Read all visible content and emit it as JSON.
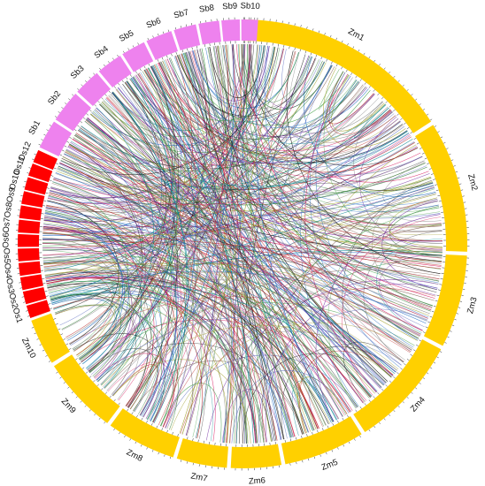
{
  "diagram": {
    "type": "circos-synteny",
    "colors": {
      "maize": "#FFD000",
      "sorghum": "#EE82EE",
      "rice": "#FF0000"
    },
    "segments": [
      {
        "id": "Zm1",
        "label": "Zm1",
        "group": "maize"
      },
      {
        "id": "Zm2",
        "label": "Zm2",
        "group": "maize"
      },
      {
        "id": "Zm3",
        "label": "Zm3",
        "group": "maize"
      },
      {
        "id": "Zm4",
        "label": "Zm4",
        "group": "maize"
      },
      {
        "id": "Zm5",
        "label": "Zm5",
        "group": "maize"
      },
      {
        "id": "Zm6",
        "label": "Zm6",
        "group": "maize"
      },
      {
        "id": "Zm7",
        "label": "Zm7",
        "group": "maize"
      },
      {
        "id": "Zm8",
        "label": "Zm8",
        "group": "maize"
      },
      {
        "id": "Zm9",
        "label": "Zm9",
        "group": "maize"
      },
      {
        "id": "Zm10",
        "label": "Zm10",
        "group": "maize"
      },
      {
        "id": "Os1",
        "label": "Os1",
        "group": "rice"
      },
      {
        "id": "Os2",
        "label": "Os2",
        "group": "rice"
      },
      {
        "id": "Os3",
        "label": "Os3",
        "group": "rice"
      },
      {
        "id": "Os4",
        "label": "Os4",
        "group": "rice"
      },
      {
        "id": "Os5",
        "label": "Os5",
        "group": "rice"
      },
      {
        "id": "Os6",
        "label": "Os6",
        "group": "rice"
      },
      {
        "id": "Os7",
        "label": "Os7",
        "group": "rice"
      },
      {
        "id": "Os8",
        "label": "Os8",
        "group": "rice"
      },
      {
        "id": "Os9",
        "label": "Os9",
        "group": "rice"
      },
      {
        "id": "Os10",
        "label": "Os10",
        "group": "rice"
      },
      {
        "id": "Os11",
        "label": "Os11",
        "group": "rice"
      },
      {
        "id": "Os12",
        "label": "Os12",
        "group": "rice"
      },
      {
        "id": "Sb1",
        "label": "Sb1",
        "group": "sorghum"
      },
      {
        "id": "Sb2",
        "label": "Sb2",
        "group": "sorghum"
      },
      {
        "id": "Sb3",
        "label": "Sb3",
        "group": "sorghum"
      },
      {
        "id": "Sb4",
        "label": "Sb4",
        "group": "sorghum"
      },
      {
        "id": "Sb5",
        "label": "Sb5",
        "group": "sorghum"
      },
      {
        "id": "Sb6",
        "label": "Sb6",
        "group": "sorghum"
      },
      {
        "id": "Sb7",
        "label": "Sb7",
        "group": "sorghum"
      },
      {
        "id": "Sb8",
        "label": "Sb8",
        "group": "sorghum"
      },
      {
        "id": "Sb9",
        "label": "Sb9",
        "group": "sorghum"
      },
      {
        "id": "Sb10",
        "label": "Sb10",
        "group": "sorghum"
      }
    ],
    "link_colors": [
      "#1a1a1a",
      "#2e7d32",
      "#6a1b9a",
      "#b71c1c",
      "#1565c0",
      "#00838f",
      "#9e9d24",
      "#8d6e63",
      "#d81b60",
      "#5c6bc0",
      "#43a047",
      "#7b7b7b"
    ]
  }
}
